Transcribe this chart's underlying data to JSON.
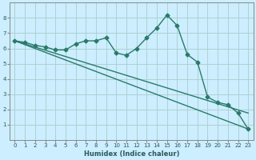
{
  "xlabel": "Humidex (Indice chaleur)",
  "background_color": "#cceeff",
  "grid_color": "#aacccc",
  "line_color": "#2a7a6a",
  "xlim": [
    -0.5,
    23.5
  ],
  "ylim": [
    0,
    9
  ],
  "xticks": [
    0,
    1,
    2,
    3,
    4,
    5,
    6,
    7,
    8,
    9,
    10,
    11,
    12,
    13,
    14,
    15,
    16,
    17,
    18,
    19,
    20,
    21,
    22,
    23
  ],
  "yticks": [
    1,
    2,
    3,
    4,
    5,
    6,
    7,
    8
  ],
  "curve1_x": [
    0,
    1,
    2,
    3,
    4,
    5,
    6,
    7,
    8,
    9,
    10,
    11,
    12,
    13,
    14,
    15,
    16,
    17,
    18,
    19,
    20,
    21,
    22,
    23
  ],
  "curve1_y": [
    6.5,
    6.4,
    6.2,
    6.1,
    5.9,
    5.9,
    6.3,
    6.5,
    6.5,
    6.7,
    5.7,
    5.55,
    6.0,
    6.7,
    7.35,
    8.2,
    7.5,
    5.6,
    5.1,
    2.8,
    2.45,
    2.3,
    1.75,
    0.7
  ],
  "line1_x": [
    0,
    23
  ],
  "line1_y": [
    6.5,
    0.7
  ],
  "line2_x": [
    0,
    23
  ],
  "line2_y": [
    6.5,
    1.75
  ],
  "marker_style": "D",
  "marker_size": 2.5,
  "linewidth": 1.0,
  "xlabel_fontsize": 6,
  "tick_fontsize": 5,
  "xlabel_color": "#2a5a5a"
}
